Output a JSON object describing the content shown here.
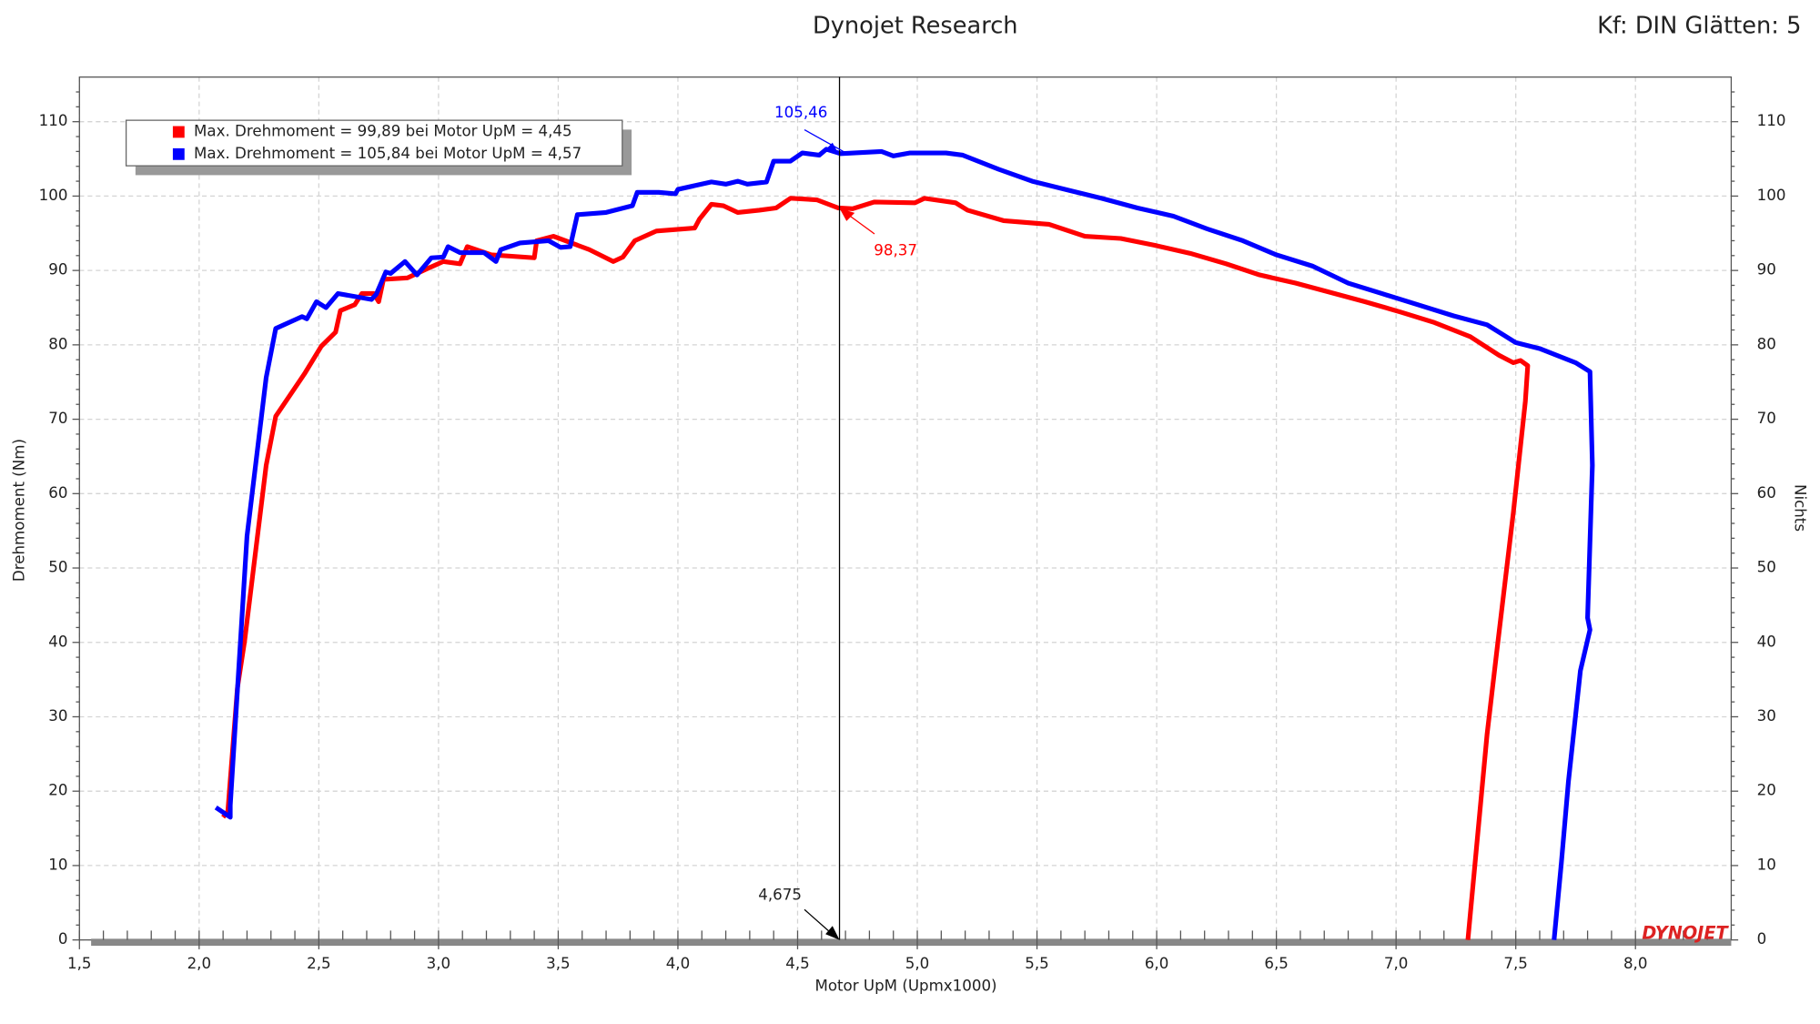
{
  "chart_data": {
    "type": "line",
    "title": "Dynojet Research",
    "subtitle": "Kf: DIN Glätten: 5",
    "x_label": "Motor UpM (Upmx1000)",
    "y_label": "Drehmoment (Nm)",
    "y2_label": "Nichts",
    "logo": "DYNOJET",
    "xlim": [
      1.5,
      8.4
    ],
    "ylim": [
      0,
      116
    ],
    "y2lim": [
      0,
      116
    ],
    "grid": true,
    "xticks": [
      {
        "value": 1.5,
        "label": "1,5"
      },
      {
        "value": 2.0,
        "label": "2,0"
      },
      {
        "value": 2.5,
        "label": "2,5"
      },
      {
        "value": 3.0,
        "label": "3,0"
      },
      {
        "value": 3.5,
        "label": "3,5"
      },
      {
        "value": 4.0,
        "label": "4,0"
      },
      {
        "value": 4.5,
        "label": "4,5"
      },
      {
        "value": 5.0,
        "label": "5,0"
      },
      {
        "value": 5.5,
        "label": "5,5"
      },
      {
        "value": 6.0,
        "label": "6,0"
      },
      {
        "value": 6.5,
        "label": "6,5"
      },
      {
        "value": 7.0,
        "label": "7,0"
      },
      {
        "value": 7.5,
        "label": "7,5"
      },
      {
        "value": 8.0,
        "label": "8,0"
      }
    ],
    "yticks": [
      0,
      10,
      20,
      30,
      40,
      50,
      60,
      70,
      80,
      90,
      100,
      110
    ],
    "y2ticks": [
      0,
      10,
      20,
      30,
      40,
      50,
      60,
      70,
      80,
      90,
      100,
      110
    ],
    "legend": [
      "Max. Drehmoment = 99,89 bei Motor UpM = 4,45",
      "Max. Drehmoment = 105,84 bei Motor UpM = 4,57"
    ],
    "legend_position": "upper left",
    "cursor": {
      "value": 4.675,
      "label": "4,675"
    },
    "cursor_values": [
      {
        "value": 98.37,
        "label": "98,37"
      },
      {
        "value": 105.46,
        "label": "105,46"
      }
    ],
    "series": [
      {
        "color": "#ff0000",
        "x": [
          2.1,
          2.12,
          2.16,
          2.19,
          2.28,
          2.32,
          2.44,
          2.51,
          2.57,
          2.59,
          2.65,
          2.68,
          2.73,
          2.75,
          2.77,
          2.87,
          2.95,
          3.02,
          3.09,
          3.12,
          3.22,
          3.4,
          3.41,
          3.48,
          3.63,
          3.73,
          3.77,
          3.82,
          3.91,
          4.07,
          4.09,
          4.14,
          4.19,
          4.25,
          4.34,
          4.41,
          4.47,
          4.58,
          4.67,
          4.73,
          4.82,
          4.99,
          5.03,
          5.16,
          5.21,
          5.36,
          5.55,
          5.7,
          5.85,
          5.99,
          6.14,
          6.29,
          6.43,
          6.58,
          6.72,
          6.87,
          7.02,
          7.16,
          7.31,
          7.43,
          7.49,
          7.52,
          7.55,
          7.54,
          7.49,
          7.42,
          7.38,
          7.3
        ],
        "values": [
          16.5,
          17.3,
          33.9,
          40.2,
          63.8,
          70.4,
          76.1,
          79.8,
          81.7,
          84.6,
          85.4,
          86.9,
          86.9,
          85.8,
          88.8,
          89.0,
          90.2,
          91.2,
          90.9,
          93.2,
          92.1,
          91.7,
          94.0,
          94.6,
          92.8,
          91.2,
          91.8,
          94.0,
          95.3,
          95.7,
          96.9,
          98.9,
          98.7,
          97.8,
          98.1,
          98.4,
          99.7,
          99.5,
          98.4,
          98.3,
          99.2,
          99.1,
          99.7,
          99.1,
          98.1,
          96.7,
          96.2,
          94.6,
          94.3,
          93.4,
          92.3,
          90.9,
          89.4,
          88.3,
          87.1,
          85.8,
          84.4,
          83.0,
          81.1,
          78.6,
          77.6,
          77.9,
          77.2,
          72.4,
          57.5,
          38.6,
          27.6,
          0
        ]
      },
      {
        "color": "#0000ff",
        "x": [
          2.07,
          2.13,
          2.13,
          2.2,
          2.28,
          2.32,
          2.43,
          2.45,
          2.49,
          2.53,
          2.58,
          2.72,
          2.74,
          2.78,
          2.8,
          2.86,
          2.91,
          2.97,
          3.02,
          3.04,
          3.09,
          3.19,
          3.24,
          3.26,
          3.34,
          3.46,
          3.51,
          3.55,
          3.58,
          3.7,
          3.81,
          3.83,
          3.92,
          3.99,
          4.0,
          4.14,
          4.2,
          4.25,
          4.29,
          4.37,
          4.4,
          4.47,
          4.52,
          4.59,
          4.62,
          4.68,
          4.85,
          4.9,
          4.97,
          5.12,
          5.19,
          5.34,
          5.48,
          5.63,
          5.77,
          5.92,
          6.07,
          6.21,
          6.36,
          6.5,
          6.65,
          6.8,
          6.94,
          7.09,
          7.24,
          7.38,
          7.5,
          7.6,
          7.75,
          7.81,
          7.82,
          7.8,
          7.81,
          7.77,
          7.72,
          7.69,
          7.66
        ],
        "values": [
          17.8,
          16.5,
          18.1,
          54.3,
          75.6,
          82.2,
          83.8,
          83.5,
          85.8,
          85.0,
          86.9,
          86.1,
          86.8,
          89.8,
          89.6,
          91.2,
          89.4,
          91.7,
          91.8,
          93.2,
          92.4,
          92.4,
          91.2,
          92.8,
          93.7,
          94.0,
          93.1,
          93.2,
          97.5,
          97.8,
          98.7,
          100.5,
          100.5,
          100.3,
          100.9,
          101.9,
          101.6,
          102.0,
          101.6,
          101.9,
          104.7,
          104.7,
          105.8,
          105.5,
          106.3,
          105.7,
          106.0,
          105.4,
          105.8,
          105.8,
          105.5,
          103.6,
          102.0,
          100.8,
          99.7,
          98.4,
          97.3,
          95.6,
          94.0,
          92.1,
          90.6,
          88.3,
          86.9,
          85.4,
          83.9,
          82.7,
          80.3,
          79.5,
          77.6,
          76.4,
          63.8,
          43.3,
          41.7,
          36.2,
          21.3,
          10.2,
          0
        ]
      }
    ]
  }
}
